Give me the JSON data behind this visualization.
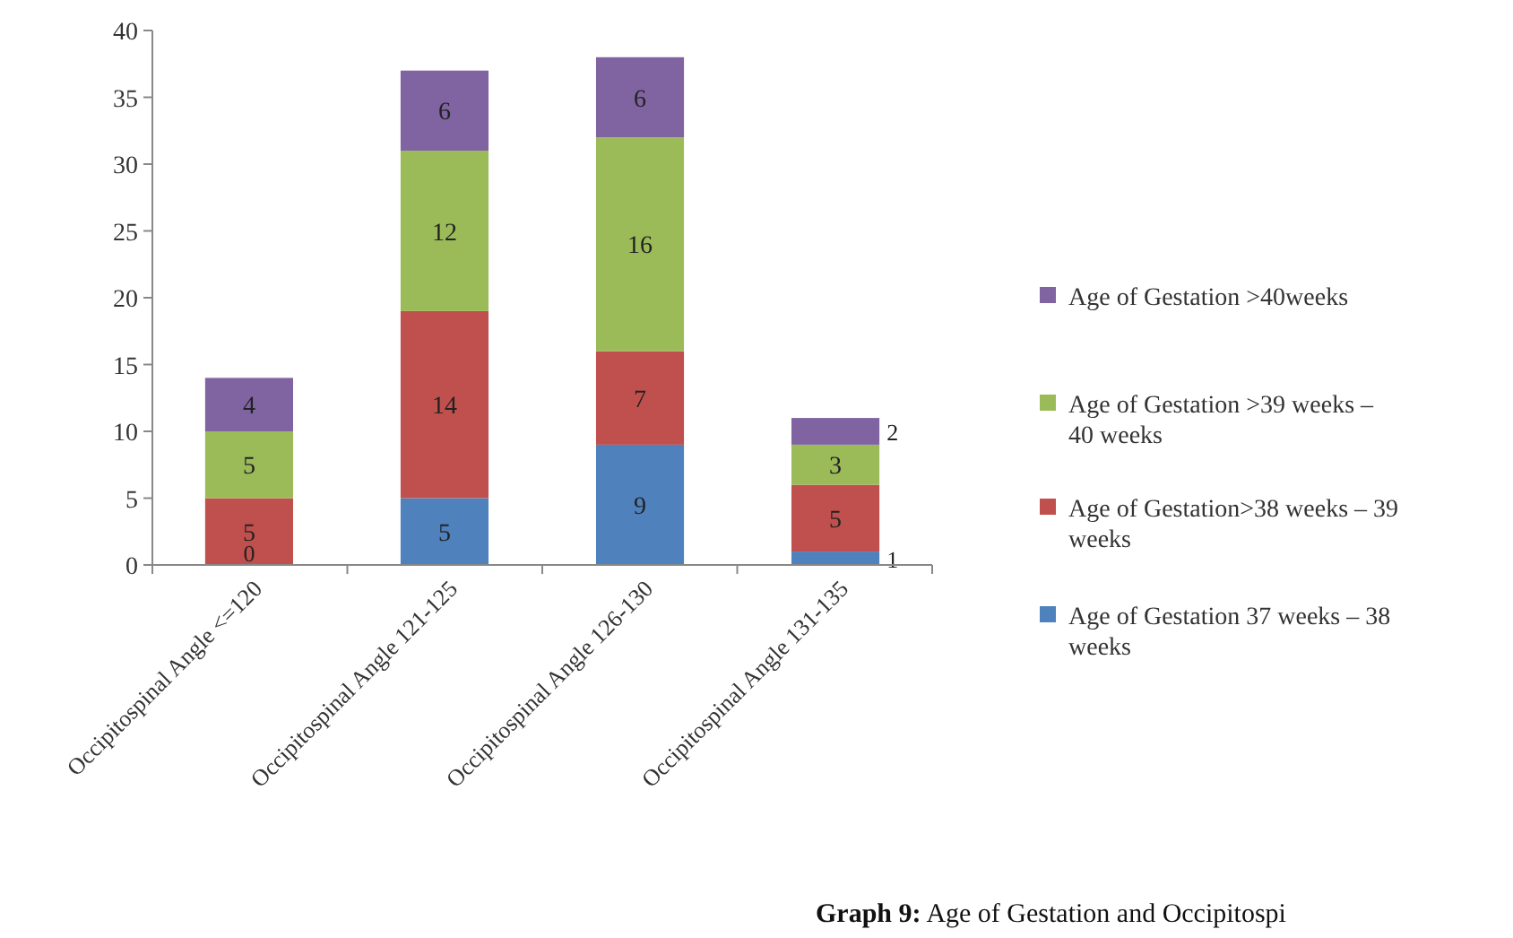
{
  "chart_data": {
    "type": "bar",
    "stacked": true,
    "categories": [
      "Occipitospinal Angle <=120",
      "Occipitospinal Angle 121-125",
      "Occipitospinal Angle 126-130",
      "Occipitospinal Angle 131-135"
    ],
    "series": [
      {
        "name": "Age of Gestation 37 weeks – 38 weeks",
        "color": "#4f81bd",
        "values": [
          0,
          5,
          9,
          1
        ],
        "value_labels": [
          null,
          "5",
          "9",
          "1"
        ]
      },
      {
        "name": "Age of Gestation>38 weeks – 39 weeks",
        "color": "#c0504d",
        "values": [
          5,
          14,
          7,
          5
        ],
        "value_labels": [
          "5",
          "14",
          "7",
          "5"
        ]
      },
      {
        "name": "Age of Gestation >39 weeks – 40 weeks",
        "color": "#9bbb59",
        "values": [
          5,
          12,
          16,
          3
        ],
        "value_labels": [
          "5",
          "12",
          "16",
          "3"
        ]
      },
      {
        "name": "Age of Gestation >40weeks",
        "color": "#8064a2",
        "values": [
          4,
          6,
          6,
          2
        ],
        "value_labels": [
          "4",
          "6",
          "6",
          "2"
        ]
      }
    ],
    "ylim": [
      0,
      40
    ],
    "yticks": [
      0,
      5,
      10,
      15,
      20,
      25,
      30,
      35,
      40
    ],
    "legend": "right",
    "annotations": [
      "Graph 9: Age of Gestation and Occipitospi",
      {
        "text": "0",
        "x": "Occipitospinal Angle <=120",
        "y": 0
      }
    ]
  }
}
